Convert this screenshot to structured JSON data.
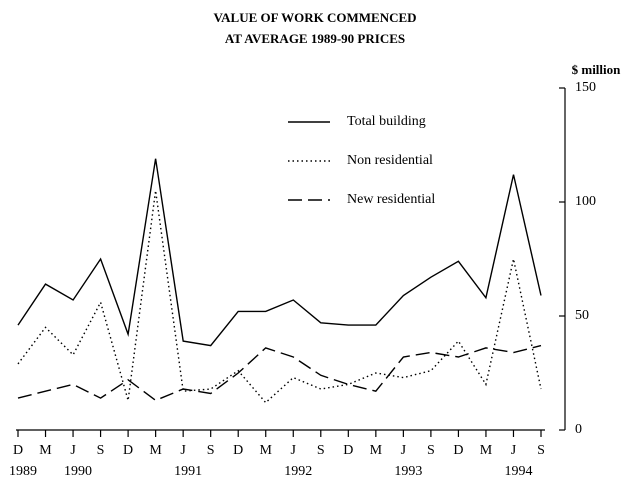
{
  "chart_data": {
    "type": "line",
    "title": "VALUE OF WORK COMMENCED",
    "subtitle": "AT AVERAGE 1989-90 PRICES",
    "y_label": "$ million",
    "categories": [
      "D",
      "M",
      "J",
      "S",
      "D",
      "M",
      "J",
      "S",
      "D",
      "M",
      "J",
      "S",
      "D",
      "M",
      "J",
      "S",
      "D",
      "M",
      "J",
      "S"
    ],
    "year_labels": [
      "1989",
      null,
      "1990",
      null,
      null,
      null,
      "1991",
      null,
      null,
      null,
      "1992",
      null,
      null,
      null,
      "1993",
      null,
      null,
      null,
      "1994",
      null
    ],
    "series": [
      {
        "name": "Total building",
        "color": "#000000",
        "dash": "solid",
        "values": [
          46,
          64,
          57,
          75,
          42,
          119,
          39,
          37,
          52,
          52,
          57,
          47,
          46,
          46,
          59,
          67,
          74,
          58,
          112,
          59
        ]
      },
      {
        "name": "Non residential",
        "color": "#000000",
        "dash": "dotted",
        "values": [
          29,
          45,
          33,
          56,
          13,
          105,
          17,
          18,
          26,
          12,
          23,
          18,
          20,
          25,
          23,
          26,
          39,
          20,
          75,
          18
        ]
      },
      {
        "name": "New residential",
        "color": "#000000",
        "dash": "dashed",
        "values": [
          14,
          17,
          20,
          14,
          22,
          13,
          18,
          16,
          25,
          36,
          32,
          24,
          20,
          17,
          32,
          34,
          32,
          36,
          34,
          37
        ]
      }
    ],
    "ylim": [
      0,
      150
    ],
    "yticks": [
      0,
      50,
      100,
      150
    ],
    "y_axis_side": "right"
  }
}
